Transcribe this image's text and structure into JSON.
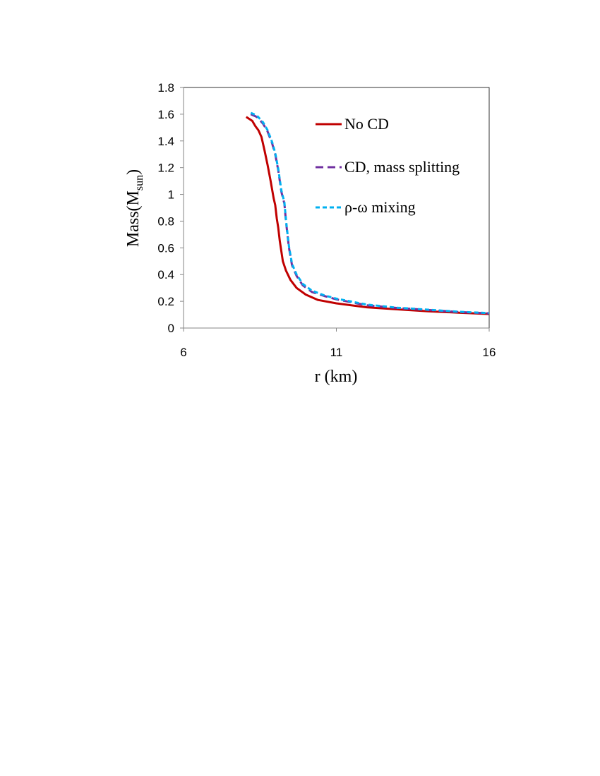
{
  "chart_data": {
    "type": "line",
    "xlabel": "r (km)",
    "ylabel": {
      "main": "Mass(M",
      "sub": "sun",
      "end": ")"
    },
    "xlim": [
      6,
      16
    ],
    "ylim": [
      0,
      1.8
    ],
    "xticks": [
      6,
      11,
      16
    ],
    "xtick_labels": [
      "6",
      "11",
      "16"
    ],
    "yticks": [
      0,
      0.2,
      0.4,
      0.6,
      0.8,
      1.0,
      1.2,
      1.4,
      1.6,
      1.8
    ],
    "ytick_labels": [
      "0",
      "0.2",
      "0.4",
      "0.6",
      "0.8",
      "1",
      "1.2",
      "1.4",
      "1.6",
      "1.8"
    ],
    "grid": false,
    "legend_position": "top-right",
    "series": [
      {
        "name": "No CD",
        "color": "#c00000",
        "dash": "solid",
        "x": [
          8.05,
          8.25,
          8.35,
          8.45,
          8.55,
          8.65,
          8.75,
          8.85,
          8.95,
          9.0,
          9.05,
          9.1,
          9.15,
          9.25,
          9.35,
          9.5,
          9.7,
          10.0,
          10.4,
          11.0,
          12.0,
          13.0,
          14.0,
          15.0,
          16.0
        ],
        "y": [
          1.58,
          1.55,
          1.51,
          1.48,
          1.43,
          1.33,
          1.22,
          1.1,
          0.97,
          0.92,
          0.82,
          0.75,
          0.65,
          0.5,
          0.43,
          0.36,
          0.3,
          0.25,
          0.21,
          0.185,
          0.155,
          0.14,
          0.125,
          0.115,
          0.105
        ]
      },
      {
        "name": "CD, mass splitting",
        "color": "#7030a0",
        "dash": "dash",
        "x": [
          8.2,
          8.4,
          8.6,
          8.75,
          8.9,
          9.0,
          9.1,
          9.2,
          9.3,
          9.35,
          9.4,
          9.45,
          9.55,
          9.7,
          9.9,
          10.2,
          10.6,
          11.0,
          12.0,
          13.0,
          14.0,
          15.0,
          16.0
        ],
        "y": [
          1.6,
          1.58,
          1.53,
          1.47,
          1.38,
          1.3,
          1.18,
          1.02,
          0.93,
          0.8,
          0.7,
          0.6,
          0.47,
          0.39,
          0.32,
          0.27,
          0.24,
          0.215,
          0.17,
          0.15,
          0.135,
          0.12,
          0.11
        ]
      },
      {
        "name": "ρ-ω mixing",
        "color": "#00b0f0",
        "dash": "shortdash",
        "x": [
          8.2,
          8.4,
          8.6,
          8.75,
          8.9,
          9.0,
          9.1,
          9.2,
          9.3,
          9.35,
          9.4,
          9.45,
          9.55,
          9.7,
          9.9,
          10.2,
          10.6,
          11.0,
          12.0,
          13.0,
          14.0,
          15.0,
          16.0
        ],
        "y": [
          1.61,
          1.59,
          1.54,
          1.48,
          1.39,
          1.31,
          1.19,
          1.03,
          0.94,
          0.81,
          0.71,
          0.61,
          0.48,
          0.4,
          0.33,
          0.28,
          0.245,
          0.22,
          0.175,
          0.152,
          0.137,
          0.122,
          0.112
        ]
      }
    ]
  }
}
